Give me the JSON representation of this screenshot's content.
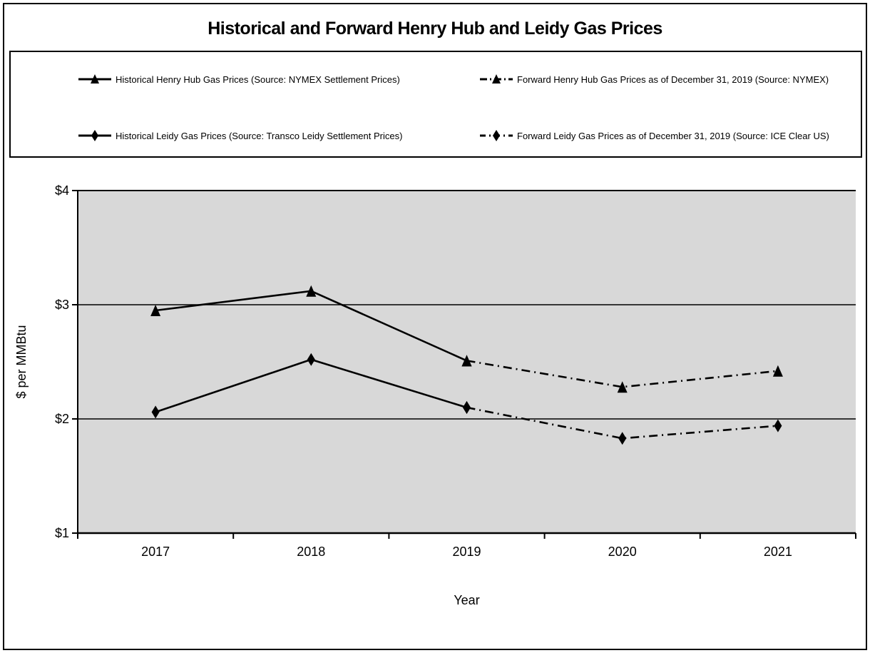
{
  "page": {
    "title": "Historical and Forward Henry Hub and Leidy Gas Prices"
  },
  "legend": {
    "items": [
      {
        "label": "Historical Henry Hub Gas Prices (Source: NYMEX Settlement Prices)",
        "marker": "solid-line-triangle-marker-icon",
        "line_style": "solid",
        "marker_shape": "triangle"
      },
      {
        "label": "Forward Henry Hub Gas Prices as of December 31, 2019 (Source: NYMEX)",
        "marker": "dash-dot-line-triangle-marker-icon",
        "line_style": "dash-dot",
        "marker_shape": "triangle"
      },
      {
        "label": "Historical Leidy Gas Prices (Source: Transco Leidy Settlement Prices)",
        "marker": "solid-line-diamond-marker-icon",
        "line_style": "solid",
        "marker_shape": "diamond"
      },
      {
        "label": "Forward Leidy Gas Prices as of December 31, 2019 (Source: ICE Clear US)",
        "marker": "dash-dot-line-diamond-marker-icon",
        "line_style": "dash-dot",
        "marker_shape": "diamond"
      }
    ]
  },
  "chart_data": {
    "type": "line",
    "title": "Historical and Forward Henry Hub and Leidy Gas Prices",
    "xlabel": "Year",
    "ylabel": "$ per MMBtu",
    "x_categories": [
      "2017",
      "2018",
      "2019",
      "2020",
      "2021"
    ],
    "y_ticks": [
      {
        "label": "$4",
        "value": 4
      },
      {
        "label": "$3",
        "value": 3
      },
      {
        "label": "$2",
        "value": 2
      },
      {
        "label": "$1",
        "value": 1
      }
    ],
    "ylim": [
      1,
      4
    ],
    "grid": "horizontal",
    "legend_position": "top-box",
    "plot_bg_color": "#d8d8d8",
    "line_color": "#000000",
    "series": [
      {
        "name": "Historical Henry Hub Gas Prices (Source: NYMEX Settlement Prices)",
        "style": "solid",
        "marker": "triangle",
        "points": [
          {
            "x": "2017",
            "y": 2.95
          },
          {
            "x": "2018",
            "y": 3.12
          },
          {
            "x": "2019",
            "y": 2.51
          }
        ]
      },
      {
        "name": "Forward Henry Hub Gas Prices as of December 31, 2019 (Source: NYMEX)",
        "style": "dash-dot",
        "marker": "triangle",
        "points": [
          {
            "x": "2019",
            "y": 2.51
          },
          {
            "x": "2020",
            "y": 2.28
          },
          {
            "x": "2021",
            "y": 2.42
          }
        ]
      },
      {
        "name": "Historical Leidy Gas Prices (Source: Transco Leidy Settlement Prices)",
        "style": "solid",
        "marker": "diamond",
        "points": [
          {
            "x": "2017",
            "y": 2.06
          },
          {
            "x": "2018",
            "y": 2.52
          },
          {
            "x": "2019",
            "y": 2.1
          }
        ]
      },
      {
        "name": "Forward Leidy Gas Prices as of December 31, 2019 (Source: ICE Clear US)",
        "style": "dash-dot",
        "marker": "diamond",
        "points": [
          {
            "x": "2019",
            "y": 2.1
          },
          {
            "x": "2020",
            "y": 1.83
          },
          {
            "x": "2021",
            "y": 1.94
          }
        ]
      }
    ]
  }
}
